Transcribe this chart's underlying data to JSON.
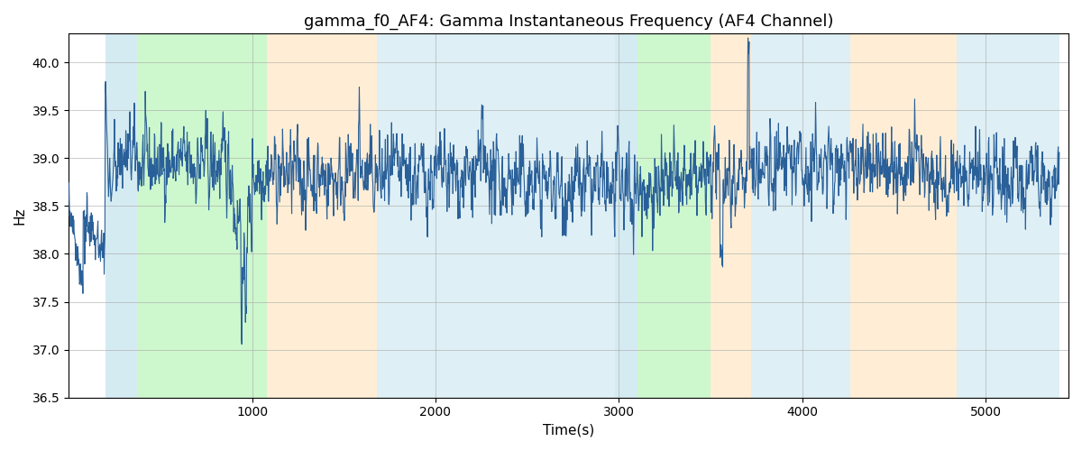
{
  "title": "gamma_f0_AF4: Gamma Instantaneous Frequency (AF4 Channel)",
  "xlabel": "Time(s)",
  "ylabel": "Hz",
  "ylim": [
    36.5,
    40.3
  ],
  "xlim": [
    0,
    5450
  ],
  "title_fontsize": 13,
  "label_fontsize": 11,
  "line_color": "#2a6099",
  "line_width": 0.8,
  "background_color": "#ffffff",
  "seed": 42,
  "n_points": 2700,
  "colored_regions": [
    {
      "start": 200,
      "end": 380,
      "color": "#add8e6",
      "alpha": 0.5
    },
    {
      "start": 380,
      "end": 1080,
      "color": "#90ee90",
      "alpha": 0.45
    },
    {
      "start": 1080,
      "end": 1680,
      "color": "#ffdead",
      "alpha": 0.5
    },
    {
      "start": 1680,
      "end": 2980,
      "color": "#add8e6",
      "alpha": 0.4
    },
    {
      "start": 2980,
      "end": 3100,
      "color": "#add8e6",
      "alpha": 0.5
    },
    {
      "start": 3100,
      "end": 3500,
      "color": "#90ee90",
      "alpha": 0.45
    },
    {
      "start": 3500,
      "end": 3720,
      "color": "#ffdead",
      "alpha": 0.5
    },
    {
      "start": 3720,
      "end": 4260,
      "color": "#add8e6",
      "alpha": 0.4
    },
    {
      "start": 4260,
      "end": 4840,
      "color": "#ffdead",
      "alpha": 0.5
    },
    {
      "start": 4840,
      "end": 5400,
      "color": "#add8e6",
      "alpha": 0.4
    }
  ]
}
